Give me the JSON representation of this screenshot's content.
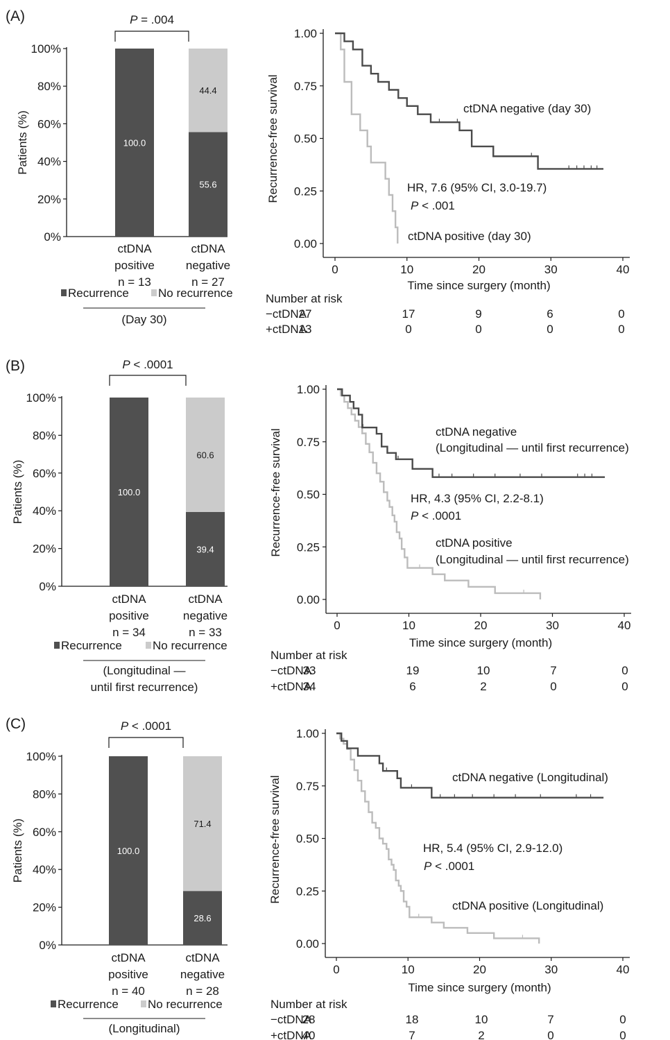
{
  "colors": {
    "recurrence": "#505050",
    "no_recurrence": "#cbcbcb",
    "km_negative": "#4a4a4a",
    "km_positive": "#bcbcbc"
  },
  "chart_data": [
    {
      "type": "bar",
      "panel_label": "(A)",
      "stacked": true,
      "categories": [
        [
          "ctDNA",
          "positive",
          "n = 13"
        ],
        [
          "ctDNA",
          "negative",
          "n = 27"
        ]
      ],
      "series": [
        {
          "name": "Recurrence",
          "values": [
            100.0,
            55.6
          ],
          "labels": [
            "100.0",
            "55.6"
          ]
        },
        {
          "name": "No recurrence",
          "values": [
            0,
            44.4
          ],
          "labels": [
            "",
            "44.4"
          ]
        }
      ],
      "ylabel": "Patients (%)",
      "ylim": [
        0,
        100
      ],
      "yticks": [
        "0%",
        "20%",
        "40%",
        "60%",
        "80%",
        "100%"
      ],
      "pvalue": {
        "italic": "P",
        "text": " = .004"
      },
      "cohort_label": [
        "(Day 30)"
      ],
      "legend_placement": "bottom"
    },
    {
      "type": "line",
      "subtype": "kaplan-meier",
      "panel_label": "",
      "xlabel": "Time since surgery (month)",
      "ylabel": "Recurrence-free survival",
      "xlim": [
        0,
        40
      ],
      "ylim": [
        0,
        1
      ],
      "xticks": [
        "0",
        "10",
        "20",
        "30",
        "40"
      ],
      "yticks": [
        "0.00",
        "0.25",
        "0.50",
        "0.75",
        "1.00"
      ],
      "series": [
        {
          "name": "ctDNA negative (day 30)",
          "color": "#4a4a4a",
          "x": [
            0,
            1.3,
            2.5,
            3.8,
            5.0,
            6.0,
            7.5,
            8.8,
            10.0,
            11.5,
            13.3,
            17.3,
            19.0,
            22.0,
            28.2,
            37.3
          ],
          "y": [
            1.0,
            0.962,
            0.923,
            0.846,
            0.808,
            0.769,
            0.731,
            0.692,
            0.654,
            0.615,
            0.577,
            0.538,
            0.462,
            0.415,
            0.355,
            0.355
          ],
          "censored": [
            [
              14.5,
              0.577
            ],
            [
              17.0,
              0.577
            ],
            [
              27.3,
              0.415
            ],
            [
              32.5,
              0.355
            ],
            [
              33.6,
              0.355
            ],
            [
              34.6,
              0.355
            ],
            [
              35.6,
              0.355
            ],
            [
              36.4,
              0.355
            ]
          ]
        },
        {
          "name": "ctDNA positive (day 30)",
          "color": "#bcbcbc",
          "x": [
            0,
            0.8,
            1.3,
            2.3,
            3.5,
            4.5,
            5.0,
            7.0,
            7.5,
            8.0,
            8.4,
            8.7
          ],
          "y": [
            1.0,
            0.923,
            0.769,
            0.615,
            0.538,
            0.462,
            0.385,
            0.308,
            0.231,
            0.154,
            0.077,
            0.0
          ],
          "censored": []
        }
      ],
      "annotations": {
        "hr": "HR, 7.6 (95% CI, 3.0-19.7)",
        "p_italic": "P",
        "p_rest": " < .001",
        "neg_label": [
          "ctDNA negative (day 30)"
        ],
        "pos_label": [
          "ctDNA positive (day 30)"
        ]
      },
      "risk_table": {
        "title": "Number at risk",
        "rows": [
          {
            "label": "−ctDNA",
            "values": [
              "27",
              "17",
              "9",
              "6",
              "0"
            ]
          },
          {
            "label": "+ctDNA",
            "values": [
              "13",
              "0",
              "0",
              "0",
              "0"
            ]
          }
        ]
      }
    },
    {
      "type": "bar",
      "panel_label": "(B)",
      "stacked": true,
      "categories": [
        [
          "ctDNA",
          "positive",
          "n = 34"
        ],
        [
          "ctDNA",
          "negative",
          "n = 33"
        ]
      ],
      "series": [
        {
          "name": "Recurrence",
          "values": [
            100.0,
            39.4
          ],
          "labels": [
            "100.0",
            "39.4"
          ]
        },
        {
          "name": "No recurrence",
          "values": [
            0,
            60.6
          ],
          "labels": [
            "",
            "60.6"
          ]
        }
      ],
      "ylabel": "Patients (%)",
      "ylim": [
        0,
        100
      ],
      "yticks": [
        "0%",
        "20%",
        "40%",
        "60%",
        "80%",
        "100%"
      ],
      "pvalue": {
        "italic": "P",
        "text": " < .0001"
      },
      "cohort_label": [
        "(Longitudinal —",
        "until first recurrence)"
      ],
      "legend_placement": "bottom"
    },
    {
      "type": "line",
      "subtype": "kaplan-meier",
      "panel_label": "",
      "xlabel": "Time since surgery (month)",
      "ylabel": "Recurrence-free survival",
      "xlim": [
        0,
        40
      ],
      "ylim": [
        0,
        1
      ],
      "xticks": [
        "0",
        "10",
        "20",
        "30",
        "40"
      ],
      "yticks": [
        "0.00",
        "0.25",
        "0.50",
        "0.75",
        "1.00"
      ],
      "series": [
        {
          "name": "ctDNA negative (Longitudinal — until first recurrence)",
          "color": "#4a4a4a",
          "x": [
            0,
            0.7,
            1.8,
            2.3,
            3.0,
            3.5,
            5.5,
            6.2,
            7.0,
            8.2,
            10.5,
            13.3,
            37.3
          ],
          "y": [
            1.0,
            0.97,
            0.94,
            0.909,
            0.879,
            0.818,
            0.788,
            0.727,
            0.697,
            0.667,
            0.621,
            0.582,
            0.582
          ],
          "censored": [
            [
              3.6,
              0.818
            ],
            [
              8.5,
              0.667
            ],
            [
              14.2,
              0.582
            ],
            [
              16.0,
              0.582
            ],
            [
              19.0,
              0.582
            ],
            [
              22.0,
              0.582
            ],
            [
              25.5,
              0.582
            ],
            [
              28.5,
              0.582
            ],
            [
              33.5,
              0.582
            ],
            [
              34.5,
              0.582
            ],
            [
              35.5,
              0.582
            ]
          ]
        },
        {
          "name": "ctDNA positive (Longitudinal — until first recurrence)",
          "color": "#bcbcbc",
          "x": [
            0,
            0.5,
            1.0,
            1.5,
            2.0,
            2.5,
            3.0,
            3.5,
            4.0,
            4.5,
            5.0,
            5.5,
            6.0,
            6.5,
            7.0,
            7.3,
            7.7,
            8.0,
            8.3,
            8.7,
            9.0,
            9.4,
            9.8,
            13.3,
            15.0,
            18.3,
            22.0,
            28.3
          ],
          "y": [
            1.0,
            0.97,
            0.94,
            0.91,
            0.88,
            0.85,
            0.82,
            0.79,
            0.74,
            0.7,
            0.65,
            0.6,
            0.56,
            0.51,
            0.47,
            0.44,
            0.4,
            0.37,
            0.32,
            0.29,
            0.24,
            0.2,
            0.15,
            0.12,
            0.09,
            0.06,
            0.03,
            0.0
          ],
          "censored": [
            [
              11.5,
              0.15
            ],
            [
              26.0,
              0.03
            ]
          ]
        }
      ],
      "annotations": {
        "hr": "HR, 4.3 (95% CI, 2.2-8.1)",
        "p_italic": "P",
        "p_rest": " < .0001",
        "neg_label": [
          "ctDNA negative",
          "(Longitudinal — until first recurrence)"
        ],
        "pos_label": [
          "ctDNA positive",
          "(Longitudinal — until first recurrence)"
        ]
      },
      "risk_table": {
        "title": "Number at risk",
        "rows": [
          {
            "label": "−ctDNA",
            "values": [
              "33",
              "19",
              "10",
              "7",
              "0"
            ]
          },
          {
            "label": "+ctDNA",
            "values": [
              "34",
              "6",
              "2",
              "0",
              "0"
            ]
          }
        ]
      }
    },
    {
      "type": "bar",
      "panel_label": "(C)",
      "stacked": true,
      "categories": [
        [
          "ctDNA",
          "positive",
          "n = 40"
        ],
        [
          "ctDNA",
          "negative",
          "n = 28"
        ]
      ],
      "series": [
        {
          "name": "Recurrence",
          "values": [
            100.0,
            28.6
          ],
          "labels": [
            "100.0",
            "28.6"
          ]
        },
        {
          "name": "No recurrence",
          "values": [
            0,
            71.4
          ],
          "labels": [
            "",
            "71.4"
          ]
        }
      ],
      "ylabel": "Patients (%)",
      "ylim": [
        0,
        100
      ],
      "yticks": [
        "0%",
        "20%",
        "40%",
        "60%",
        "80%",
        "100%"
      ],
      "pvalue": {
        "italic": "P",
        "text": " < .0001"
      },
      "cohort_label": [
        "(Longitudinal)"
      ],
      "legend_placement": "bottom"
    },
    {
      "type": "line",
      "subtype": "kaplan-meier",
      "panel_label": "",
      "xlabel": "Time since surgery (month)",
      "ylabel": "Recurrence-free survival",
      "xlim": [
        0,
        40
      ],
      "ylim": [
        0,
        1
      ],
      "xticks": [
        "0",
        "10",
        "20",
        "30",
        "40"
      ],
      "yticks": [
        "0.00",
        "0.25",
        "0.50",
        "0.75",
        "1.00"
      ],
      "series": [
        {
          "name": "ctDNA negative (Longitudinal)",
          "color": "#4a4a4a",
          "x": [
            0,
            0.7,
            1.5,
            3.0,
            6.0,
            6.5,
            8.5,
            9.0,
            13.3,
            37.3
          ],
          "y": [
            1.0,
            0.964,
            0.929,
            0.893,
            0.857,
            0.821,
            0.786,
            0.741,
            0.694,
            0.694
          ],
          "censored": [
            [
              7.0,
              0.821
            ],
            [
              10.5,
              0.741
            ],
            [
              14.5,
              0.694
            ],
            [
              16.5,
              0.694
            ],
            [
              19.0,
              0.694
            ],
            [
              22.0,
              0.694
            ],
            [
              25.0,
              0.694
            ],
            [
              28.5,
              0.694
            ],
            [
              33.5,
              0.694
            ],
            [
              35.5,
              0.694
            ]
          ]
        },
        {
          "name": "ctDNA positive (Longitudinal)",
          "color": "#bcbcbc",
          "x": [
            0,
            0.5,
            1.0,
            1.5,
            2.0,
            2.5,
            3.0,
            3.5,
            4.0,
            4.5,
            5.0,
            5.5,
            6.0,
            6.5,
            7.0,
            7.3,
            7.7,
            8.0,
            8.3,
            8.7,
            9.0,
            9.4,
            9.8,
            10.2,
            13.3,
            15.0,
            18.3,
            22.0,
            28.3
          ],
          "y": [
            1.0,
            0.975,
            0.95,
            0.925,
            0.875,
            0.825,
            0.775,
            0.725,
            0.675,
            0.625,
            0.575,
            0.55,
            0.5,
            0.475,
            0.45,
            0.4,
            0.375,
            0.35,
            0.3,
            0.275,
            0.25,
            0.2,
            0.175,
            0.125,
            0.1,
            0.075,
            0.05,
            0.025,
            0.0
          ],
          "censored": [
            [
              11.5,
              0.125
            ],
            [
              26.0,
              0.025
            ]
          ]
        }
      ],
      "annotations": {
        "hr": "HR, 5.4 (95% CI, 2.9-12.0)",
        "p_italic": "P",
        "p_rest": " < .0001",
        "neg_label": [
          "ctDNA negative (Longitudinal)"
        ],
        "pos_label": [
          "ctDNA positive (Longitudinal)"
        ]
      },
      "risk_table": {
        "title": "Number at risk",
        "rows": [
          {
            "label": "−ctDNA",
            "values": [
              "28",
              "18",
              "10",
              "7",
              "0"
            ]
          },
          {
            "label": "+ctDNA",
            "values": [
              "40",
              "7",
              "2",
              "0",
              "0"
            ]
          }
        ]
      }
    }
  ]
}
